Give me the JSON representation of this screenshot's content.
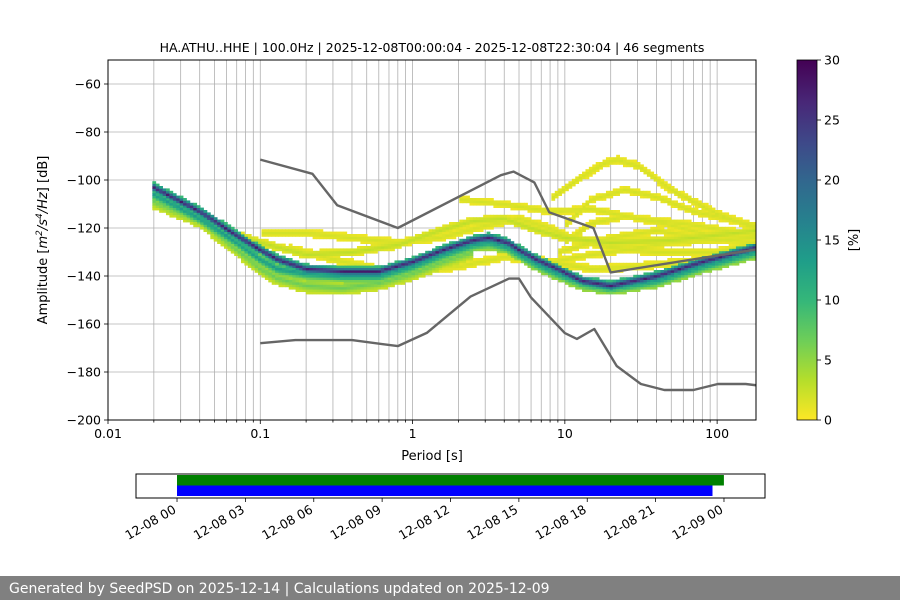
{
  "chart_data": [
    {
      "type": "heatmap",
      "title": "HA.ATHU..HHE | 100.0Hz | 2025-12-08T00:00:04 - 2025-12-08T22:30:04 | 46 segments",
      "xlabel": "Period [s]",
      "ylabel_parts": [
        "Amplitude [",
        "m",
        "2",
        "/",
        "s",
        "4",
        "/",
        "Hz",
        "] [dB]"
      ],
      "x_scale": "log",
      "xlim": [
        0.01,
        180
      ],
      "ylim": [
        -200,
        -50
      ],
      "x_ticks": [
        {
          "value": 0.01,
          "label": "0.01"
        },
        {
          "value": 0.1,
          "label": "0.1"
        },
        {
          "value": 1,
          "label": "1"
        },
        {
          "value": 10,
          "label": "10"
        },
        {
          "value": 100,
          "label": "100"
        }
      ],
      "y_ticks": [
        {
          "value": -60,
          "label": "−60"
        },
        {
          "value": -80,
          "label": "−80"
        },
        {
          "value": -100,
          "label": "−100"
        },
        {
          "value": -120,
          "label": "−120"
        },
        {
          "value": -140,
          "label": "−140"
        },
        {
          "value": -160,
          "label": "−160"
        },
        {
          "value": -180,
          "label": "−180"
        },
        {
          "value": -200,
          "label": "−200"
        }
      ],
      "grid": true,
      "colorbar": {
        "label": "[%]",
        "range": [
          0,
          30
        ],
        "ticks": [
          {
            "value": 0,
            "label": "0"
          },
          {
            "value": 5,
            "label": "5"
          },
          {
            "value": 10,
            "label": "10"
          },
          {
            "value": 15,
            "label": "15"
          },
          {
            "value": 20,
            "label": "20"
          },
          {
            "value": 25,
            "label": "25"
          },
          {
            "value": 30,
            "label": "30"
          }
        ],
        "colormap": [
          "#fde725",
          "#b5de2b",
          "#6ece58",
          "#35b779",
          "#1f9e89",
          "#26828e",
          "#31688e",
          "#3e4989",
          "#482878",
          "#440154"
        ]
      },
      "reference_curves": {
        "color": "#666666",
        "high_noise_model": [
          {
            "x": 0.1,
            "y": -91.5
          },
          {
            "x": 0.22,
            "y": -97.4
          },
          {
            "x": 0.32,
            "y": -110.5
          },
          {
            "x": 0.8,
            "y": -120
          },
          {
            "x": 3.8,
            "y": -98
          },
          {
            "x": 4.6,
            "y": -96.5
          },
          {
            "x": 6.3,
            "y": -101
          },
          {
            "x": 7.9,
            "y": -113.5
          },
          {
            "x": 15.4,
            "y": -120
          },
          {
            "x": 20,
            "y": -138.5
          },
          {
            "x": 354.8,
            "y": -126
          }
        ],
        "low_noise_model": [
          {
            "x": 0.1,
            "y": -168
          },
          {
            "x": 0.17,
            "y": -166.7
          },
          {
            "x": 0.4,
            "y": -166.7
          },
          {
            "x": 0.8,
            "y": -169.2
          },
          {
            "x": 1.24,
            "y": -163.7
          },
          {
            "x": 2.4,
            "y": -148.6
          },
          {
            "x": 4.3,
            "y": -141.1
          },
          {
            "x": 5,
            "y": -141.1
          },
          {
            "x": 6,
            "y": -149
          },
          {
            "x": 10,
            "y": -163.8
          },
          {
            "x": 12,
            "y": -166.2
          },
          {
            "x": 15.6,
            "y": -162.1
          },
          {
            "x": 21.9,
            "y": -177.5
          },
          {
            "x": 31.6,
            "y": -185
          },
          {
            "x": 45,
            "y": -187.5
          },
          {
            "x": 70,
            "y": -187.5
          },
          {
            "x": 101,
            "y": -185
          },
          {
            "x": 154,
            "y": -185
          },
          {
            "x": 328,
            "y": -187.5
          }
        ]
      },
      "psd_bands": [
        {
          "name": "",
          "density": 28,
          "halfwidth": 1.6,
          "points": [
            [
              0.02,
              -103
            ],
            [
              0.04,
              -113
            ],
            [
              0.07,
              -123
            ],
            [
              0.1,
              -129
            ],
            [
              0.13,
              -133
            ],
            [
              0.2,
              -137
            ],
            [
              0.35,
              -138
            ],
            [
              0.6,
              -138
            ],
            [
              1,
              -134
            ],
            [
              1.6,
              -129
            ],
            [
              2.5,
              -125
            ],
            [
              3.2,
              -124
            ],
            [
              4.2,
              -126
            ],
            [
              5,
              -129
            ],
            [
              6.5,
              -133
            ],
            [
              9,
              -137
            ],
            [
              13,
              -142
            ],
            [
              20,
              -144
            ],
            [
              40,
              -140
            ],
            [
              80,
              -134
            ],
            [
              180,
              -128
            ]
          ]
        },
        {
          "name": "",
          "density": 14,
          "halfwidth": 2.5,
          "points": [
            [
              0.02,
              -106
            ],
            [
              0.04,
              -116
            ],
            [
              0.07,
              -126
            ],
            [
              0.1,
              -133
            ],
            [
              0.13,
              -137
            ],
            [
              0.2,
              -139
            ],
            [
              0.35,
              -140
            ],
            [
              0.6,
              -140
            ],
            [
              1,
              -136
            ],
            [
              1.6,
              -131
            ],
            [
              2.5,
              -127
            ],
            [
              3.2,
              -126
            ],
            [
              4.2,
              -128
            ],
            [
              5,
              -131
            ],
            [
              6.5,
              -135
            ],
            [
              9,
              -139
            ],
            [
              13,
              -143
            ],
            [
              20,
              -145
            ],
            [
              40,
              -142
            ],
            [
              80,
              -136
            ],
            [
              180,
              -130
            ]
          ]
        },
        {
          "name": "",
          "density": 7,
          "halfwidth": 2.5,
          "points": [
            [
              0.02,
              -109
            ],
            [
              0.04,
              -117
            ],
            [
              0.07,
              -129
            ],
            [
              0.1,
              -137
            ],
            [
              0.13,
              -141
            ],
            [
              0.2,
              -144
            ],
            [
              0.35,
              -145
            ],
            [
              0.6,
              -143
            ],
            [
              1,
              -139
            ],
            [
              1.6,
              -134
            ],
            [
              2.5,
              -130
            ]
          ]
        },
        {
          "name": "",
          "density": 3,
          "halfwidth": 1.2,
          "points": [
            [
              0.03,
              -112
            ],
            [
              0.05,
              -119
            ],
            [
              0.1,
              -126
            ],
            [
              0.2,
              -131
            ],
            [
              0.4,
              -130
            ],
            [
              0.8,
              -127
            ],
            [
              1.5,
              -121
            ],
            [
              2.5,
              -117
            ],
            [
              4,
              -116
            ],
            [
              6,
              -120
            ],
            [
              10,
              -124
            ],
            [
              20,
              -126
            ],
            [
              50,
              -125
            ],
            [
              180,
              -121
            ]
          ]
        },
        {
          "name": "",
          "density": 2,
          "halfwidth": 1.2,
          "points": [
            [
              0.1,
              -122
            ],
            [
              0.2,
              -122
            ],
            [
              0.4,
              -124
            ],
            [
              0.8,
              -126
            ],
            [
              1.5,
              -124
            ],
            [
              3,
              -119
            ],
            [
              5,
              -116
            ],
            [
              8,
              -120
            ],
            [
              12,
              -125
            ],
            [
              20,
              -128
            ],
            [
              40,
              -130
            ],
            [
              100,
              -130
            ],
            [
              180,
              -126
            ]
          ]
        },
        {
          "name": "",
          "density": 2,
          "halfwidth": 1.2,
          "points": [
            [
              0.15,
              -128
            ],
            [
              0.3,
              -133
            ],
            [
              0.6,
              -137
            ],
            [
              1,
              -138
            ],
            [
              2,
              -136
            ],
            [
              4,
              -132
            ],
            [
              8,
              -134
            ],
            [
              15,
              -137
            ],
            [
              30,
              -136
            ],
            [
              60,
              -134
            ],
            [
              180,
              -131
            ]
          ]
        },
        {
          "name": "",
          "density": 2,
          "halfwidth": 1.2,
          "points": [
            [
              8,
              -108
            ],
            [
              12,
              -100
            ],
            [
              18,
              -93
            ],
            [
              22,
              -91.5
            ],
            [
              30,
              -94
            ],
            [
              50,
              -104
            ],
            [
              100,
              -114
            ],
            [
              180,
              -120
            ]
          ]
        },
        {
          "name": "",
          "density": 2,
          "halfwidth": 1.0,
          "points": [
            [
              10,
              -119
            ],
            [
              15,
              -108
            ],
            [
              25,
              -104
            ],
            [
              40,
              -107
            ],
            [
              70,
              -113
            ],
            [
              180,
              -119
            ]
          ]
        },
        {
          "name": "",
          "density": 2,
          "halfwidth": 1.0,
          "points": [
            [
              10,
              -126
            ],
            [
              15,
              -118
            ],
            [
              25,
              -115
            ],
            [
              45,
              -118
            ],
            [
              90,
              -123
            ],
            [
              180,
              -124
            ]
          ]
        },
        {
          "name": "",
          "density": 2,
          "halfwidth": 1.0,
          "points": [
            [
              9,
              -130
            ],
            [
              20,
              -124
            ],
            [
              40,
              -121
            ],
            [
              80,
              -124
            ],
            [
              180,
              -126
            ]
          ]
        },
        {
          "name": "",
          "density": 2,
          "halfwidth": 1.0,
          "points": [
            [
              2,
              -108
            ],
            [
              4,
              -110
            ],
            [
              8,
              -113
            ],
            [
              15,
              -112
            ],
            [
              30,
              -116
            ],
            [
              60,
              -118
            ],
            [
              180,
              -123
            ]
          ]
        },
        {
          "name": "",
          "density": 2,
          "halfwidth": 1.0,
          "points": [
            [
              6,
              -136
            ],
            [
              12,
              -132
            ],
            [
              25,
              -129
            ],
            [
              50,
              -126
            ],
            [
              180,
              -124
            ]
          ]
        }
      ]
    },
    {
      "type": "timeline",
      "x_start": "2025-12-08T00:00",
      "x_end": "2025-12-09T00:00",
      "xlim": [
        "2025-12-07T22:12",
        "2025-12-09T01:48"
      ],
      "x_ticks": [
        {
          "value": "2025-12-08T00:00",
          "label": "12-08 00"
        },
        {
          "value": "2025-12-08T03:00",
          "label": "12-08 03"
        },
        {
          "value": "2025-12-08T06:00",
          "label": "12-08 06"
        },
        {
          "value": "2025-12-08T09:00",
          "label": "12-08 09"
        },
        {
          "value": "2025-12-08T12:00",
          "label": "12-08 12"
        },
        {
          "value": "2025-12-08T15:00",
          "label": "12-08 15"
        },
        {
          "value": "2025-12-08T18:00",
          "label": "12-08 18"
        },
        {
          "value": "2025-12-08T21:00",
          "label": "12-08 21"
        },
        {
          "value": "2025-12-09T00:00",
          "label": "12-09 00"
        }
      ],
      "bars": [
        {
          "color": "#008000",
          "start": "2025-12-08T00:00:04",
          "end": "2025-12-09T00:00:00"
        },
        {
          "color": "#0000ff",
          "start": "2025-12-08T00:00:04",
          "end": "2025-12-08T23:30:00"
        }
      ]
    }
  ],
  "footer": {
    "text": "Generated by SeedPSD on 2025-12-14 | Calculations updated on 2025-12-09"
  }
}
